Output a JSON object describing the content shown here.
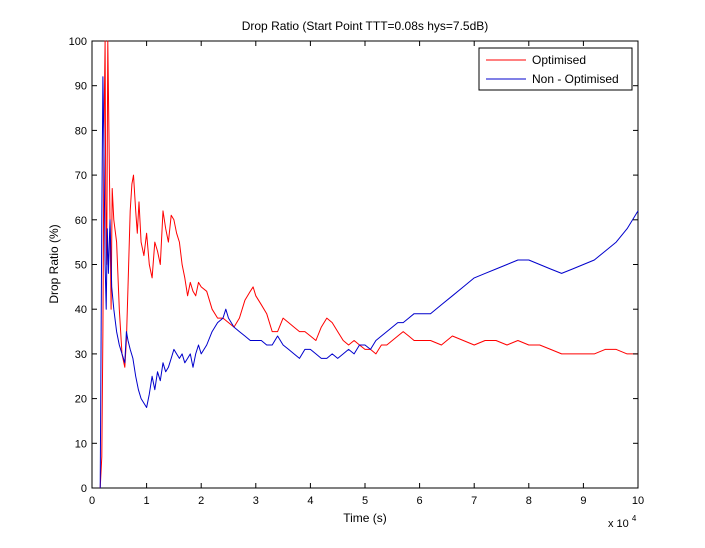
{
  "chart_data": {
    "type": "line",
    "title": "Drop Ratio (Start Point TTT=0.08s hys=7.5dB)",
    "xlabel": "Time (s)",
    "ylabel": "Drop Ratio (%)",
    "x_multiplier_label": "x 10",
    "x_multiplier_exponent": "4",
    "xlim": [
      0,
      10
    ],
    "ylim": [
      0,
      100
    ],
    "xticks": [
      "0",
      "1",
      "2",
      "3",
      "4",
      "5",
      "6",
      "7",
      "8",
      "9",
      "10"
    ],
    "yticks": [
      "0",
      "10",
      "20",
      "30",
      "40",
      "50",
      "60",
      "70",
      "80",
      "90",
      "100"
    ],
    "grid": false,
    "legend_position": "top-right",
    "series": [
      {
        "name": "Optimised",
        "color": "#ff0000",
        "points": [
          [
            0.15,
            0
          ],
          [
            0.18,
            7
          ],
          [
            0.2,
            35
          ],
          [
            0.22,
            80
          ],
          [
            0.24,
            100
          ],
          [
            0.25,
            65
          ],
          [
            0.27,
            50
          ],
          [
            0.29,
            100
          ],
          [
            0.31,
            80
          ],
          [
            0.33,
            60
          ],
          [
            0.35,
            40
          ],
          [
            0.37,
            67
          ],
          [
            0.4,
            60
          ],
          [
            0.45,
            55
          ],
          [
            0.5,
            40
          ],
          [
            0.55,
            30
          ],
          [
            0.6,
            27
          ],
          [
            0.63,
            33
          ],
          [
            0.66,
            45
          ],
          [
            0.7,
            62
          ],
          [
            0.73,
            68
          ],
          [
            0.76,
            70
          ],
          [
            0.8,
            62
          ],
          [
            0.83,
            57
          ],
          [
            0.86,
            64
          ],
          [
            0.9,
            55
          ],
          [
            0.95,
            52
          ],
          [
            1.0,
            57
          ],
          [
            1.05,
            50
          ],
          [
            1.1,
            47
          ],
          [
            1.15,
            55
          ],
          [
            1.2,
            53
          ],
          [
            1.25,
            50
          ],
          [
            1.3,
            62
          ],
          [
            1.35,
            58
          ],
          [
            1.4,
            55
          ],
          [
            1.45,
            61
          ],
          [
            1.5,
            60
          ],
          [
            1.55,
            57
          ],
          [
            1.6,
            55
          ],
          [
            1.65,
            50
          ],
          [
            1.7,
            47
          ],
          [
            1.75,
            43
          ],
          [
            1.8,
            46
          ],
          [
            1.85,
            44
          ],
          [
            1.9,
            43
          ],
          [
            1.95,
            46
          ],
          [
            2.0,
            45
          ],
          [
            2.1,
            44
          ],
          [
            2.2,
            40
          ],
          [
            2.3,
            38
          ],
          [
            2.4,
            38
          ],
          [
            2.5,
            37
          ],
          [
            2.6,
            36
          ],
          [
            2.7,
            38
          ],
          [
            2.8,
            42
          ],
          [
            2.9,
            44
          ],
          [
            2.95,
            45
          ],
          [
            3.0,
            43
          ],
          [
            3.1,
            41
          ],
          [
            3.2,
            39
          ],
          [
            3.3,
            35
          ],
          [
            3.4,
            35
          ],
          [
            3.5,
            38
          ],
          [
            3.6,
            37
          ],
          [
            3.7,
            36
          ],
          [
            3.8,
            35
          ],
          [
            3.9,
            35
          ],
          [
            4.0,
            34
          ],
          [
            4.1,
            33
          ],
          [
            4.2,
            36
          ],
          [
            4.3,
            38
          ],
          [
            4.4,
            37
          ],
          [
            4.5,
            35
          ],
          [
            4.6,
            33
          ],
          [
            4.7,
            32
          ],
          [
            4.8,
            33
          ],
          [
            4.9,
            32
          ],
          [
            5.0,
            31
          ],
          [
            5.1,
            31
          ],
          [
            5.2,
            30
          ],
          [
            5.3,
            32
          ],
          [
            5.4,
            32
          ],
          [
            5.5,
            33
          ],
          [
            5.6,
            34
          ],
          [
            5.7,
            35
          ],
          [
            5.8,
            34
          ],
          [
            5.9,
            33
          ],
          [
            6.0,
            33
          ],
          [
            6.2,
            33
          ],
          [
            6.4,
            32
          ],
          [
            6.6,
            34
          ],
          [
            6.8,
            33
          ],
          [
            7.0,
            32
          ],
          [
            7.2,
            33
          ],
          [
            7.4,
            33
          ],
          [
            7.6,
            32
          ],
          [
            7.8,
            33
          ],
          [
            8.0,
            32
          ],
          [
            8.2,
            32
          ],
          [
            8.4,
            31
          ],
          [
            8.6,
            30
          ],
          [
            8.8,
            30
          ],
          [
            9.0,
            30
          ],
          [
            9.2,
            30
          ],
          [
            9.4,
            31
          ],
          [
            9.6,
            31
          ],
          [
            9.8,
            30
          ],
          [
            10.0,
            30
          ]
        ]
      },
      {
        "name": "Non - Optimised",
        "color": "#0000cc",
        "points": [
          [
            0.15,
            0
          ],
          [
            0.18,
            60
          ],
          [
            0.2,
            92
          ],
          [
            0.22,
            75
          ],
          [
            0.24,
            50
          ],
          [
            0.26,
            40
          ],
          [
            0.28,
            58
          ],
          [
            0.3,
            48
          ],
          [
            0.33,
            60
          ],
          [
            0.36,
            45
          ],
          [
            0.4,
            40
          ],
          [
            0.45,
            35
          ],
          [
            0.5,
            32
          ],
          [
            0.55,
            30
          ],
          [
            0.6,
            28
          ],
          [
            0.63,
            35
          ],
          [
            0.66,
            33
          ],
          [
            0.7,
            31
          ],
          [
            0.75,
            29
          ],
          [
            0.8,
            25
          ],
          [
            0.85,
            22
          ],
          [
            0.9,
            20
          ],
          [
            0.95,
            19
          ],
          [
            1.0,
            18
          ],
          [
            1.05,
            21
          ],
          [
            1.1,
            25
          ],
          [
            1.15,
            22
          ],
          [
            1.2,
            26
          ],
          [
            1.25,
            24
          ],
          [
            1.3,
            28
          ],
          [
            1.35,
            26
          ],
          [
            1.4,
            27
          ],
          [
            1.45,
            29
          ],
          [
            1.5,
            31
          ],
          [
            1.55,
            30
          ],
          [
            1.6,
            29
          ],
          [
            1.65,
            30
          ],
          [
            1.7,
            28
          ],
          [
            1.75,
            29
          ],
          [
            1.8,
            30
          ],
          [
            1.85,
            27
          ],
          [
            1.9,
            30
          ],
          [
            1.95,
            32
          ],
          [
            2.0,
            30
          ],
          [
            2.1,
            32
          ],
          [
            2.2,
            35
          ],
          [
            2.3,
            37
          ],
          [
            2.4,
            38
          ],
          [
            2.45,
            40
          ],
          [
            2.5,
            38
          ],
          [
            2.6,
            36
          ],
          [
            2.7,
            35
          ],
          [
            2.8,
            34
          ],
          [
            2.9,
            33
          ],
          [
            3.0,
            33
          ],
          [
            3.1,
            33
          ],
          [
            3.2,
            32
          ],
          [
            3.3,
            32
          ],
          [
            3.4,
            34
          ],
          [
            3.5,
            32
          ],
          [
            3.6,
            31
          ],
          [
            3.7,
            30
          ],
          [
            3.8,
            29
          ],
          [
            3.9,
            31
          ],
          [
            4.0,
            31
          ],
          [
            4.1,
            30
          ],
          [
            4.2,
            29
          ],
          [
            4.3,
            29
          ],
          [
            4.4,
            30
          ],
          [
            4.5,
            29
          ],
          [
            4.6,
            30
          ],
          [
            4.7,
            31
          ],
          [
            4.8,
            30
          ],
          [
            4.9,
            32
          ],
          [
            5.0,
            32
          ],
          [
            5.1,
            31
          ],
          [
            5.2,
            33
          ],
          [
            5.3,
            34
          ],
          [
            5.4,
            35
          ],
          [
            5.5,
            36
          ],
          [
            5.6,
            37
          ],
          [
            5.7,
            37
          ],
          [
            5.8,
            38
          ],
          [
            5.9,
            39
          ],
          [
            6.0,
            39
          ],
          [
            6.2,
            39
          ],
          [
            6.4,
            41
          ],
          [
            6.6,
            43
          ],
          [
            6.8,
            45
          ],
          [
            7.0,
            47
          ],
          [
            7.2,
            48
          ],
          [
            7.4,
            49
          ],
          [
            7.6,
            50
          ],
          [
            7.8,
            51
          ],
          [
            8.0,
            51
          ],
          [
            8.2,
            50
          ],
          [
            8.4,
            49
          ],
          [
            8.6,
            48
          ],
          [
            8.8,
            49
          ],
          [
            9.0,
            50
          ],
          [
            9.2,
            51
          ],
          [
            9.4,
            53
          ],
          [
            9.6,
            55
          ],
          [
            9.8,
            58
          ],
          [
            10.0,
            62
          ]
        ]
      }
    ]
  }
}
